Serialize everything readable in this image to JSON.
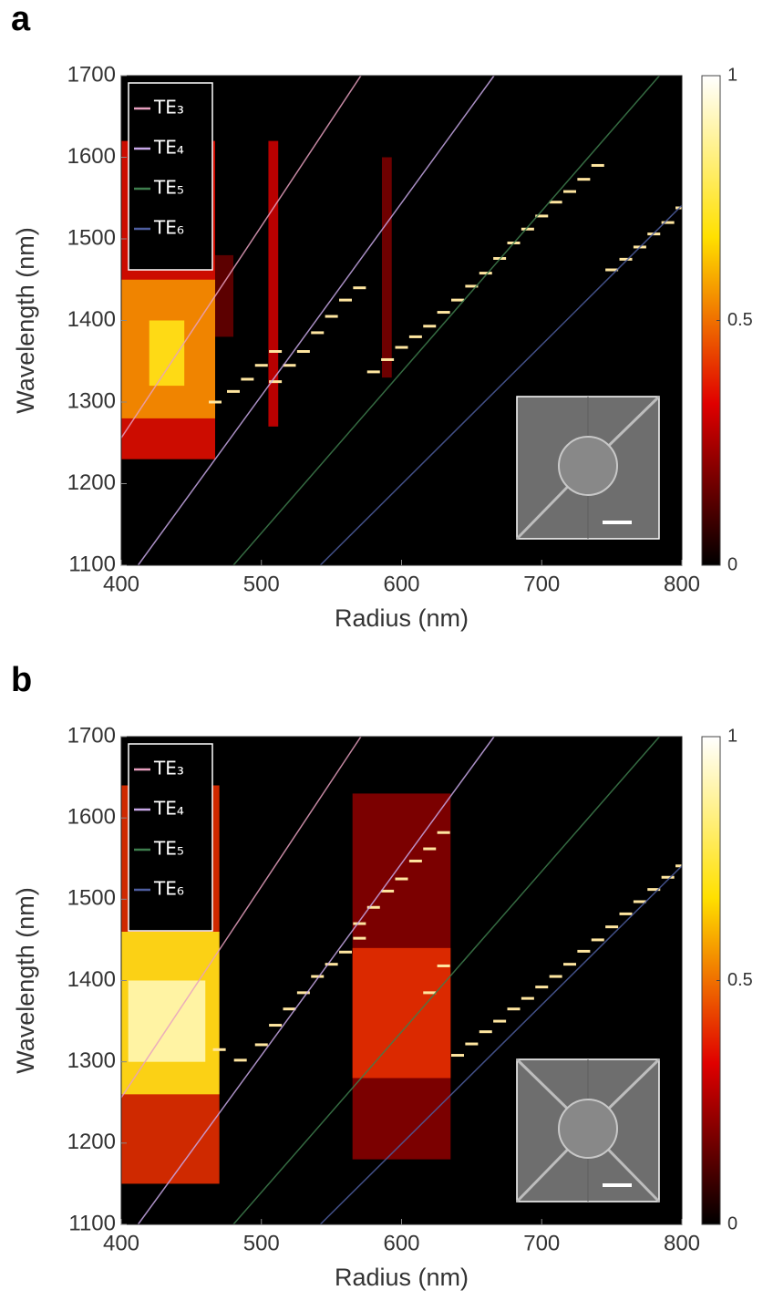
{
  "chart_data": [
    {
      "type": "heatmap",
      "panel_label": "a",
      "xlabel": "Radius (nm)",
      "ylabel": "Wavelength (nm)",
      "xlim": [
        400,
        800
      ],
      "xticks": [
        400,
        500,
        600,
        700,
        800
      ],
      "ylim": [
        1100,
        1700
      ],
      "yticks": [
        1100,
        1200,
        1300,
        1400,
        1500,
        1600,
        1700
      ],
      "colorbar": {
        "lim": [
          0,
          1
        ],
        "ticks": [
          0,
          0.5,
          1
        ]
      },
      "heatmap": [
        {
          "x": [
            400,
            467
          ],
          "y": [
            1230,
            1620
          ],
          "value": 0.35
        },
        {
          "x": [
            400,
            467
          ],
          "y": [
            1280,
            1450
          ],
          "value": 0.55
        },
        {
          "x": [
            420,
            445
          ],
          "y": [
            1320,
            1400
          ],
          "value": 0.7
        },
        {
          "x": [
            467,
            480
          ],
          "y": [
            1380,
            1480
          ],
          "value": 0.15
        },
        {
          "x": [
            505,
            512
          ],
          "y": [
            1270,
            1620
          ],
          "value": 0.3
        },
        {
          "x": [
            586,
            593
          ],
          "y": [
            1330,
            1600
          ],
          "value": 0.18
        }
      ],
      "resonances": {
        "color": "#ffe6a0",
        "x": [
          467,
          480,
          490,
          500,
          510,
          510,
          520,
          530,
          540,
          550,
          560,
          570,
          580,
          590,
          600,
          610,
          620,
          630,
          640,
          650,
          660,
          670,
          680,
          690,
          700,
          710,
          720,
          730,
          740,
          750,
          760,
          770,
          780,
          790,
          800
        ],
        "values": [
          1300,
          1313,
          1328,
          1345,
          1362,
          1325,
          1345,
          1362,
          1385,
          1405,
          1425,
          1440,
          1337,
          1352,
          1367,
          1380,
          1393,
          1410,
          1425,
          1442,
          1458,
          1476,
          1495,
          1512,
          1528,
          1545,
          1558,
          1573,
          1590,
          1462,
          1475,
          1490,
          1506,
          1520,
          1538
        ]
      },
      "series": [
        {
          "name": "TE₃",
          "color": "#e8a0c0",
          "x": [
            400,
            571
          ],
          "values": [
            1256,
            1700
          ]
        },
        {
          "name": "TE₄",
          "color": "#c8a8e8",
          "x": [
            412,
            666
          ],
          "values": [
            1100,
            1700
          ]
        },
        {
          "name": "TE₅",
          "color": "#3e7e4e",
          "x": [
            480,
            784
          ],
          "values": [
            1100,
            1700
          ]
        },
        {
          "name": "TE₆",
          "color": "#4e5ea0",
          "x": [
            542,
            800
          ],
          "values": [
            1100,
            1541
          ]
        }
      ]
    },
    {
      "type": "heatmap",
      "panel_label": "b",
      "xlabel": "Radius (nm)",
      "ylabel": "Wavelength (nm)",
      "xlim": [
        400,
        800
      ],
      "xticks": [
        400,
        500,
        600,
        700,
        800
      ],
      "ylim": [
        1100,
        1700
      ],
      "yticks": [
        1100,
        1200,
        1300,
        1400,
        1500,
        1600,
        1700
      ],
      "colorbar": {
        "lim": [
          0,
          1
        ],
        "ticks": [
          0,
          0.5,
          1
        ]
      },
      "heatmap": [
        {
          "x": [
            400,
            470
          ],
          "y": [
            1150,
            1640
          ],
          "value": 0.4
        },
        {
          "x": [
            400,
            470
          ],
          "y": [
            1260,
            1460
          ],
          "value": 0.7
        },
        {
          "x": [
            405,
            460
          ],
          "y": [
            1300,
            1400
          ],
          "value": 0.9
        },
        {
          "x": [
            565,
            635
          ],
          "y": [
            1180,
            1630
          ],
          "value": 0.2
        },
        {
          "x": [
            565,
            635
          ],
          "y": [
            1280,
            1440
          ],
          "value": 0.4
        }
      ],
      "resonances": {
        "color": "#ffe6a0",
        "x": [
          470,
          485,
          500,
          510,
          520,
          530,
          540,
          550,
          560,
          570,
          570,
          580,
          590,
          600,
          610,
          620,
          630,
          620,
          630,
          640,
          650,
          660,
          670,
          680,
          690,
          700,
          710,
          720,
          730,
          740,
          750,
          760,
          770,
          780,
          790,
          800
        ],
        "values": [
          1315,
          1302,
          1321,
          1345,
          1365,
          1385,
          1405,
          1420,
          1435,
          1452,
          1470,
          1490,
          1510,
          1525,
          1547,
          1562,
          1582,
          1385,
          1418,
          1308,
          1322,
          1337,
          1350,
          1365,
          1378,
          1392,
          1405,
          1420,
          1436,
          1450,
          1466,
          1482,
          1497,
          1512,
          1527,
          1541
        ]
      },
      "series": [
        {
          "name": "TE₃",
          "color": "#e8a0c0",
          "x": [
            400,
            571
          ],
          "values": [
            1256,
            1700
          ]
        },
        {
          "name": "TE₄",
          "color": "#c8a8e8",
          "x": [
            412,
            666
          ],
          "values": [
            1100,
            1700
          ]
        },
        {
          "name": "TE₅",
          "color": "#3e7e4e",
          "x": [
            480,
            784
          ],
          "values": [
            1100,
            1700
          ]
        },
        {
          "name": "TE₆",
          "color": "#4e5ea0",
          "x": [
            542,
            800
          ],
          "values": [
            1100,
            1541
          ]
        }
      ]
    }
  ]
}
